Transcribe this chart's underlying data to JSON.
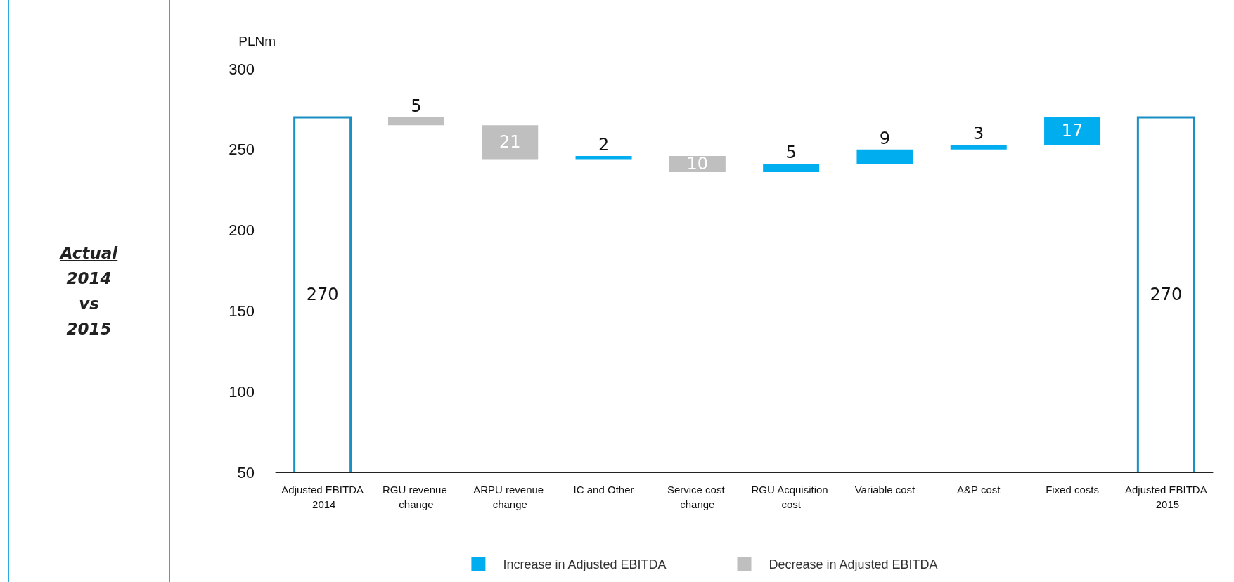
{
  "chart_data": {
    "type": "bar",
    "categories": [
      "Adjusted EBITDA 2014",
      "RGU revenue change",
      "ARPU revenue change",
      "IC and Other",
      "Service cost change",
      "RGU Acquisition cost",
      "Variable cost",
      "A&P cost",
      "Fixed costs",
      "Adjusted EBITDA 2015"
    ],
    "series": [
      {
        "color": "#1b8fc4",
        "values": [
          270,
          null,
          null,
          null,
          null,
          null,
          null,
          null,
          null,
          270
        ],
        "value_labels": [
          "270",
          null,
          null,
          null,
          null,
          null,
          null,
          null,
          null,
          "270"
        ]
      },
      {
        "name": "Increase in Adjusted EBITDA",
        "color": "#00aeef",
        "values": [
          null,
          null,
          null,
          2,
          null,
          5,
          9,
          3,
          17,
          null
        ],
        "base": [
          null,
          null,
          null,
          244,
          null,
          236,
          241,
          250,
          253,
          null
        ],
        "value_labels": [
          null,
          null,
          null,
          "2",
          null,
          "5",
          "9",
          "3",
          "17",
          null
        ]
      },
      {
        "name": "Decrease in Adjusted EBITDA",
        "color": "#bfbfbf",
        "values": [
          null,
          -5,
          -21,
          null,
          -10,
          null,
          null,
          null,
          null,
          null
        ],
        "base": [
          null,
          270,
          265,
          null,
          246,
          null,
          null,
          null,
          null,
          null
        ],
        "value_labels": [
          null,
          "5",
          "21",
          null,
          "10",
          null,
          null,
          null,
          null,
          null
        ]
      }
    ],
    "ylabel": "PLNm",
    "ylim": [
      50,
      300
    ],
    "yticks": [
      50,
      100,
      150,
      200,
      250,
      300
    ],
    "grid": false,
    "legend": "bottom",
    "annotations": [
      "Actual",
      "2014",
      "vs",
      "2015"
    ]
  }
}
